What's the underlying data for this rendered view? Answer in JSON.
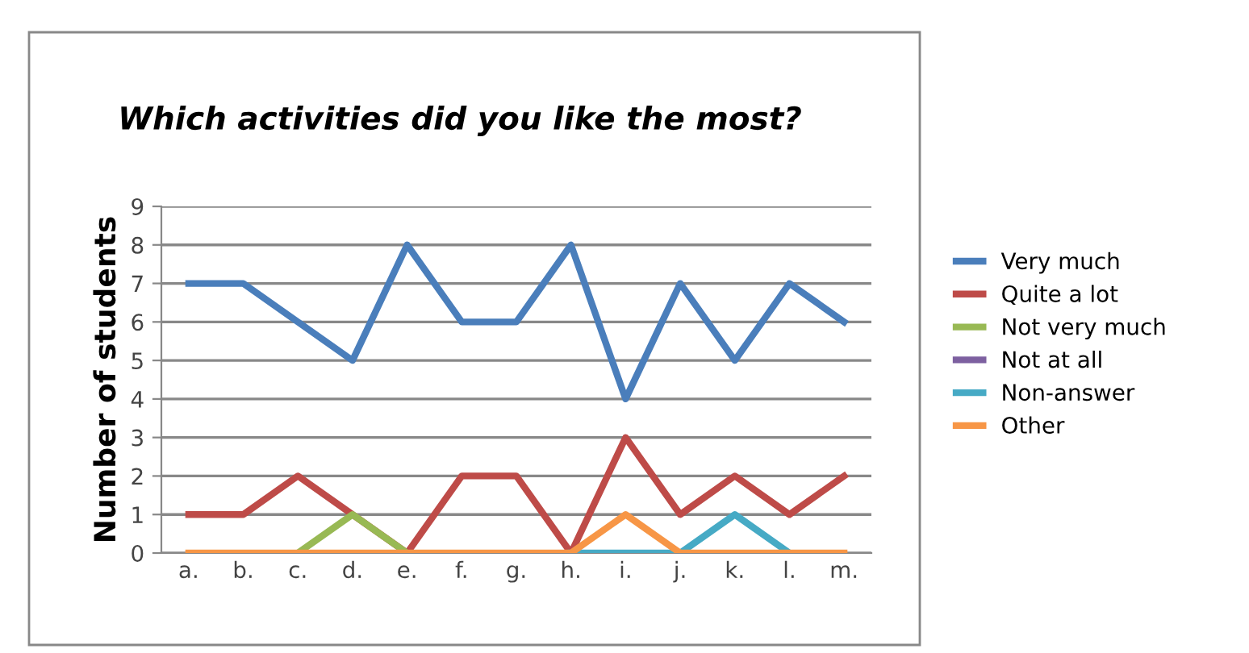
{
  "chart_data": {
    "type": "line",
    "title": "Which activities did you like the most?",
    "ylabel": "Number of students",
    "categories": [
      "a.",
      "b.",
      "c.",
      "d.",
      "e.",
      "f.",
      "g.",
      "h.",
      "i.",
      "j.",
      "k.",
      "l.",
      "m."
    ],
    "series": [
      {
        "name": "Very much",
        "color": "#4a7ebb",
        "values": [
          7,
          7,
          6,
          5,
          8,
          6,
          6,
          8,
          4,
          7,
          5,
          7,
          6
        ]
      },
      {
        "name": "Quite a lot",
        "color": "#be4b48",
        "values": [
          1,
          1,
          2,
          1,
          0,
          2,
          2,
          0,
          3,
          1,
          2,
          1,
          2
        ]
      },
      {
        "name": "Not very much",
        "color": "#98b954",
        "values": [
          null,
          null,
          0,
          1,
          0,
          null,
          null,
          null,
          null,
          null,
          null,
          null,
          null
        ]
      },
      {
        "name": "Not at all",
        "color": "#7d60a0",
        "values": [
          null,
          null,
          null,
          null,
          null,
          null,
          null,
          null,
          null,
          null,
          null,
          null,
          null
        ]
      },
      {
        "name": "Non-answer",
        "color": "#46aac5",
        "values": [
          null,
          null,
          null,
          null,
          null,
          null,
          null,
          0,
          0,
          0,
          1,
          0,
          null
        ]
      },
      {
        "name": "Other",
        "color": "#f79646",
        "values": [
          0,
          0,
          0,
          0,
          0,
          0,
          0,
          0,
          1,
          0,
          0,
          0,
          0
        ]
      }
    ],
    "ylim": [
      0,
      9
    ],
    "yticks": [
      0,
      1,
      2,
      3,
      4,
      5,
      6,
      7,
      8,
      9
    ],
    "grid": "y",
    "legend": "right",
    "marker": "none",
    "line_style": "solid"
  }
}
